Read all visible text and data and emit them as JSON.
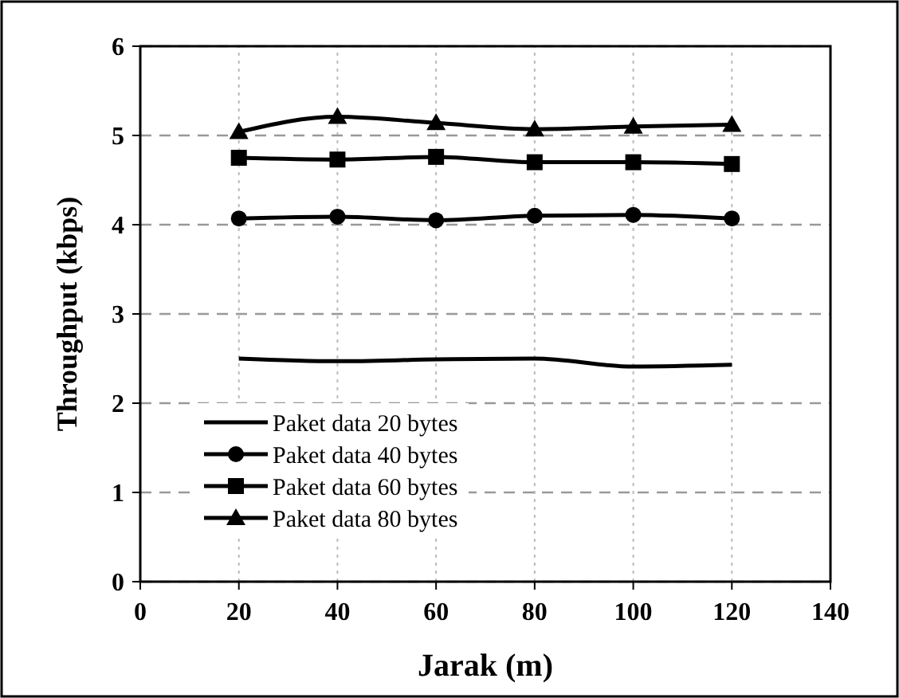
{
  "chart_data": {
    "type": "line",
    "xlabel": "Jarak (m)",
    "ylabel": "Throughput  (kbps)",
    "x": [
      20,
      40,
      60,
      80,
      100,
      120
    ],
    "xlim": [
      0,
      140
    ],
    "xticks": [
      0,
      20,
      40,
      60,
      80,
      100,
      120,
      140
    ],
    "ylim": [
      0,
      6
    ],
    "yticks": [
      0,
      1,
      2,
      3,
      4,
      5,
      6
    ],
    "grid": true,
    "legend": "bottom left",
    "line_style": "solid",
    "series": [
      {
        "name": "Paket data 20 bytes",
        "color": "#000000",
        "marker": "none",
        "values": [
          2.5,
          2.47,
          2.49,
          2.5,
          2.41,
          2.43
        ]
      },
      {
        "name": "Paket data 40 bytes",
        "color": "#000000",
        "marker": "circle",
        "values": [
          4.07,
          4.09,
          4.05,
          4.1,
          4.11,
          4.07
        ]
      },
      {
        "name": "Paket data 60 bytes",
        "color": "#000000",
        "marker": "square",
        "values": [
          4.75,
          4.73,
          4.76,
          4.7,
          4.7,
          4.68
        ]
      },
      {
        "name": "Paket data 80 bytes",
        "color": "#000000",
        "marker": "triangle",
        "values": [
          5.04,
          5.21,
          5.14,
          5.07,
          5.1,
          5.12
        ]
      }
    ]
  }
}
